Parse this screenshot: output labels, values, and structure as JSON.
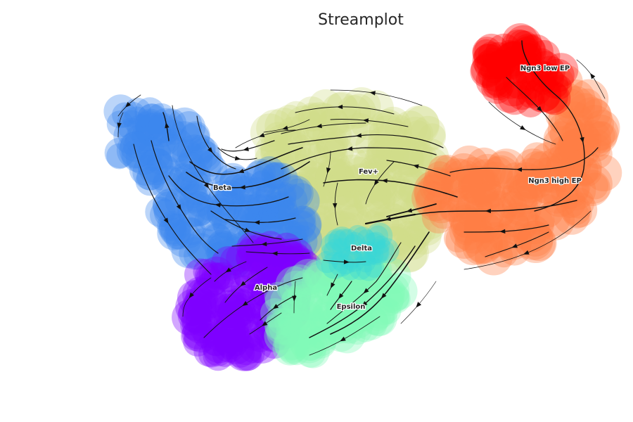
{
  "chart_data": {
    "type": "scatter",
    "subtype": "velocity streamplot over UMAP embedding",
    "title": "Streamplot",
    "xlabel": "",
    "ylabel": "",
    "axes_visible": false,
    "grid": false,
    "legend": "on data",
    "clusters": [
      {
        "name": "Ngn3 low EP",
        "color": "#ff0000"
      },
      {
        "name": "Ngn3 high EP",
        "color": "#ff7f45"
      },
      {
        "name": "Fev+",
        "color": "#d1de8a"
      },
      {
        "name": "Beta",
        "color": "#3d86ee"
      },
      {
        "name": "Delta",
        "color": "#38d8d8"
      },
      {
        "name": "Alpha",
        "color": "#7f00ff"
      },
      {
        "name": "Epsilon",
        "color": "#80f8b8"
      }
    ]
  }
}
